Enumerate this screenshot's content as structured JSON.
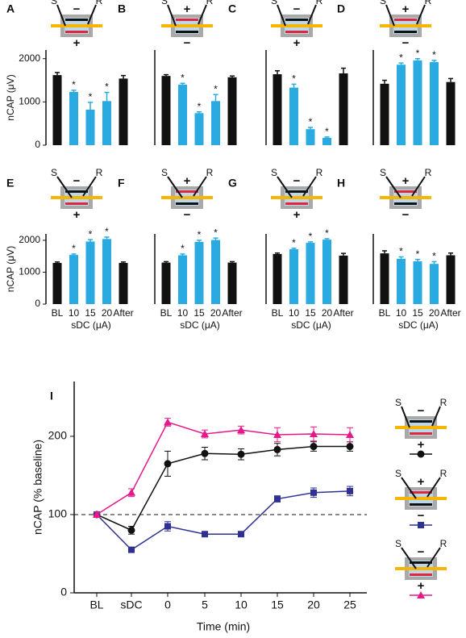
{
  "chart_data": [
    {
      "type": "bar",
      "label": "A",
      "ylabel": "nCAP (μV)",
      "ylim": [
        0,
        2200
      ],
      "yticks": [
        0,
        1000,
        2000
      ],
      "categories": [
        null,
        null,
        null,
        null,
        null
      ],
      "values": [
        1620,
        1230,
        820,
        1020,
        1540
      ],
      "errors": [
        60,
        40,
        170,
        200,
        70
      ],
      "colors": [
        "#111111",
        "#29abe2",
        "#29abe2",
        "#29abe2",
        "#111111"
      ],
      "significant": [
        false,
        true,
        true,
        true,
        false
      ],
      "star_text": "*",
      "electrode": {
        "s": "S",
        "r": "R",
        "top": "−",
        "bottom": "+"
      }
    },
    {
      "type": "bar",
      "label": "B",
      "ylim": [
        0,
        2200
      ],
      "categories": [
        null,
        null,
        null,
        null,
        null
      ],
      "values": [
        1600,
        1400,
        740,
        1020,
        1570
      ],
      "errors": [
        30,
        30,
        30,
        150,
        30
      ],
      "colors": [
        "#111111",
        "#29abe2",
        "#29abe2",
        "#29abe2",
        "#111111"
      ],
      "significant": [
        false,
        true,
        true,
        true,
        false
      ],
      "star_text": "*",
      "electrode": {
        "s": "S",
        "r": "R",
        "top": "+",
        "bottom": "−"
      }
    },
    {
      "type": "bar",
      "label": "C",
      "ylim": [
        0,
        2200
      ],
      "categories": [
        null,
        null,
        null,
        null,
        null
      ],
      "values": [
        1640,
        1330,
        370,
        170,
        1660
      ],
      "errors": [
        80,
        80,
        40,
        20,
        120
      ],
      "colors": [
        "#111111",
        "#29abe2",
        "#29abe2",
        "#29abe2",
        "#111111"
      ],
      "significant": [
        false,
        true,
        true,
        true,
        false
      ],
      "star_text": "*",
      "electrode": {
        "s": "S",
        "r": "R",
        "top": "−",
        "bottom": "+"
      }
    },
    {
      "type": "bar",
      "label": "D",
      "ylim": [
        0,
        2200
      ],
      "categories": [
        null,
        null,
        null,
        null,
        null
      ],
      "values": [
        1420,
        1860,
        1960,
        1920,
        1460
      ],
      "errors": [
        80,
        40,
        40,
        40,
        80
      ],
      "colors": [
        "#111111",
        "#29abe2",
        "#29abe2",
        "#29abe2",
        "#111111"
      ],
      "significant": [
        false,
        true,
        true,
        true,
        false
      ],
      "star_text": "*",
      "electrode": {
        "s": "S",
        "r": "R",
        "top": "+",
        "bottom": "−"
      }
    },
    {
      "type": "bar",
      "label": "E",
      "ylabel": "nCAP (μV)",
      "xlabel": "sDC (μA)",
      "ylim": [
        0,
        2200
      ],
      "yticks": [
        0,
        1000,
        2000
      ],
      "categories": [
        "BL",
        "10",
        "15",
        "20",
        "After"
      ],
      "values": [
        1290,
        1540,
        1960,
        2040,
        1290
      ],
      "errors": [
        30,
        30,
        60,
        60,
        30
      ],
      "colors": [
        "#111111",
        "#29abe2",
        "#29abe2",
        "#29abe2",
        "#111111"
      ],
      "significant": [
        false,
        true,
        true,
        true,
        false
      ],
      "star_text": "*",
      "electrode": {
        "s": "S",
        "r": "R",
        "top": "−",
        "bottom": "+"
      }
    },
    {
      "type": "bar",
      "label": "F",
      "xlabel": "sDC (μA)",
      "ylim": [
        0,
        2200
      ],
      "categories": [
        "BL",
        "10",
        "15",
        "20",
        "After"
      ],
      "values": [
        1300,
        1530,
        1950,
        2010,
        1300
      ],
      "errors": [
        30,
        40,
        50,
        60,
        30
      ],
      "colors": [
        "#111111",
        "#29abe2",
        "#29abe2",
        "#29abe2",
        "#111111"
      ],
      "significant": [
        false,
        true,
        true,
        true,
        false
      ],
      "star_text": "*",
      "electrode": {
        "s": "S",
        "r": "R",
        "top": "+",
        "bottom": "−"
      }
    },
    {
      "type": "bar",
      "label": "G",
      "xlabel": "sDC (μA)",
      "ylim": [
        0,
        2200
      ],
      "categories": [
        "BL",
        "10",
        "15",
        "20",
        "After"
      ],
      "values": [
        1570,
        1720,
        1920,
        2020,
        1520
      ],
      "errors": [
        30,
        30,
        30,
        30,
        70
      ],
      "colors": [
        "#111111",
        "#29abe2",
        "#29abe2",
        "#29abe2",
        "#111111"
      ],
      "significant": [
        false,
        true,
        true,
        true,
        false
      ],
      "star_text": "*",
      "electrode": {
        "s": "S",
        "r": "R",
        "top": "−",
        "bottom": "+"
      }
    },
    {
      "type": "bar",
      "label": "H",
      "xlabel": "sDC (μA)",
      "ylim": [
        0,
        2200
      ],
      "categories": [
        "BL",
        "10",
        "15",
        "20",
        "After"
      ],
      "values": [
        1590,
        1420,
        1340,
        1260,
        1530
      ],
      "errors": [
        80,
        60,
        60,
        70,
        70
      ],
      "colors": [
        "#111111",
        "#29abe2",
        "#29abe2",
        "#29abe2",
        "#111111"
      ],
      "significant": [
        false,
        true,
        true,
        true,
        false
      ],
      "star_text": "*",
      "electrode": {
        "s": "S",
        "r": "R",
        "top": "+",
        "bottom": "−"
      }
    },
    {
      "type": "line",
      "label": "I",
      "ylabel": "nCAP (% baseline)",
      "xlabel": "Time (min)",
      "ylim": [
        0,
        270
      ],
      "yticks": [
        0,
        100,
        200
      ],
      "hline": 100,
      "categories": [
        "BL",
        "sDC",
        "0",
        "5",
        "10",
        "15",
        "20",
        "25"
      ],
      "series": [
        {
          "color": "#111111",
          "marker": "circle",
          "values": [
            100,
            80,
            165,
            178,
            177,
            183,
            187,
            187
          ],
          "errors": [
            3,
            5,
            16,
            8,
            7,
            8,
            6,
            6
          ],
          "electrode": {
            "s": "S",
            "r": "R",
            "top": "−",
            "bottom": "+"
          }
        },
        {
          "color": "#2e3192",
          "marker": "square",
          "values": [
            100,
            55,
            85,
            75,
            75,
            120,
            128,
            130
          ],
          "errors": [
            3,
            3,
            6,
            3,
            3,
            4,
            6,
            6
          ],
          "electrode": {
            "s": "S",
            "r": "R",
            "top": "+",
            "bottom": "−"
          }
        },
        {
          "color": "#e6198a",
          "marker": "triangle",
          "values": [
            100,
            128,
            218,
            203,
            208,
            202,
            203,
            202
          ],
          "errors": [
            3,
            5,
            5,
            5,
            5,
            9,
            9,
            9
          ],
          "electrode": {
            "s": "S",
            "r": "R",
            "top": "−",
            "bottom": "+"
          }
        }
      ]
    }
  ]
}
